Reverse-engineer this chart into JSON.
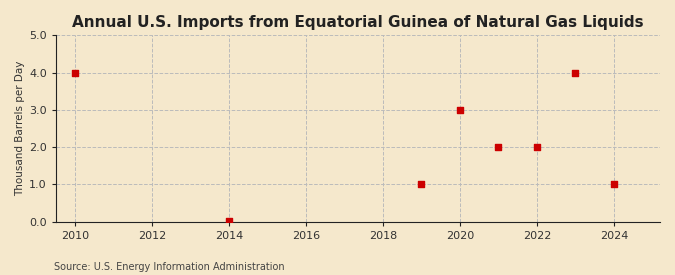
{
  "title": "Annual U.S. Imports from Equatorial Guinea of Natural Gas Liquids",
  "ylabel": "Thousand Barrels per Day",
  "source": "Source: U.S. Energy Information Administration",
  "background_color": "#f5e8cc",
  "plot_background_color": "#f5e8cc",
  "x_values": [
    2010,
    2014,
    2019,
    2020,
    2021,
    2022,
    2023,
    2024
  ],
  "y_values": [
    4.0,
    0.03,
    1.0,
    3.0,
    2.0,
    2.0,
    4.0,
    1.0
  ],
  "xlim": [
    2009.5,
    2025.2
  ],
  "ylim": [
    0.0,
    5.0
  ],
  "yticks": [
    0.0,
    1.0,
    2.0,
    3.0,
    4.0,
    5.0
  ],
  "xticks": [
    2010,
    2012,
    2014,
    2016,
    2018,
    2020,
    2022,
    2024
  ],
  "marker_color": "#cc0000",
  "marker_size": 4,
  "grid_color": "#bbbbbb",
  "grid_linestyle": "--",
  "title_fontsize": 11,
  "label_fontsize": 7.5,
  "tick_fontsize": 8,
  "source_fontsize": 7
}
